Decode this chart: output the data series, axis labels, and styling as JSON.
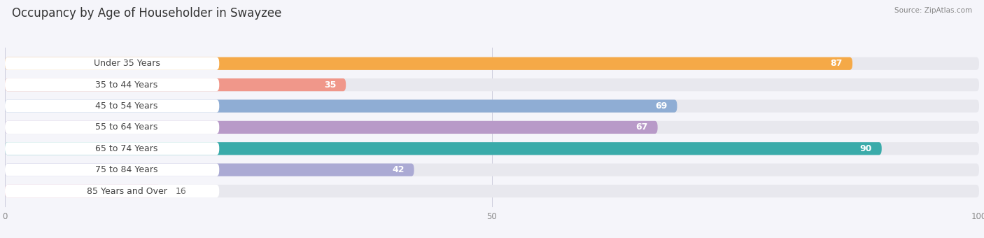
{
  "title": "Occupancy by Age of Householder in Swayzee",
  "source": "Source: ZipAtlas.com",
  "categories": [
    "Under 35 Years",
    "35 to 44 Years",
    "45 to 54 Years",
    "55 to 64 Years",
    "65 to 74 Years",
    "75 to 84 Years",
    "85 Years and Over"
  ],
  "values": [
    87,
    35,
    69,
    67,
    90,
    42,
    16
  ],
  "bar_colors": [
    "#F5A947",
    "#F0978A",
    "#8FADD4",
    "#B89AC8",
    "#3AABAA",
    "#ABAAD4",
    "#F5AABC"
  ],
  "xlim": [
    0,
    100
  ],
  "title_fontsize": 12,
  "label_fontsize": 9,
  "value_fontsize": 9,
  "fig_bg_color": "#f5f5fa",
  "bar_bg_color": "#e8e8ee",
  "label_pill_color": "#ffffff",
  "label_text_color": "#444444",
  "value_inside_color": "#ffffff",
  "value_outside_color": "#666666",
  "source_color": "#888888",
  "title_color": "#333333",
  "tick_color": "#888888",
  "grid_color": "#ccccdd"
}
